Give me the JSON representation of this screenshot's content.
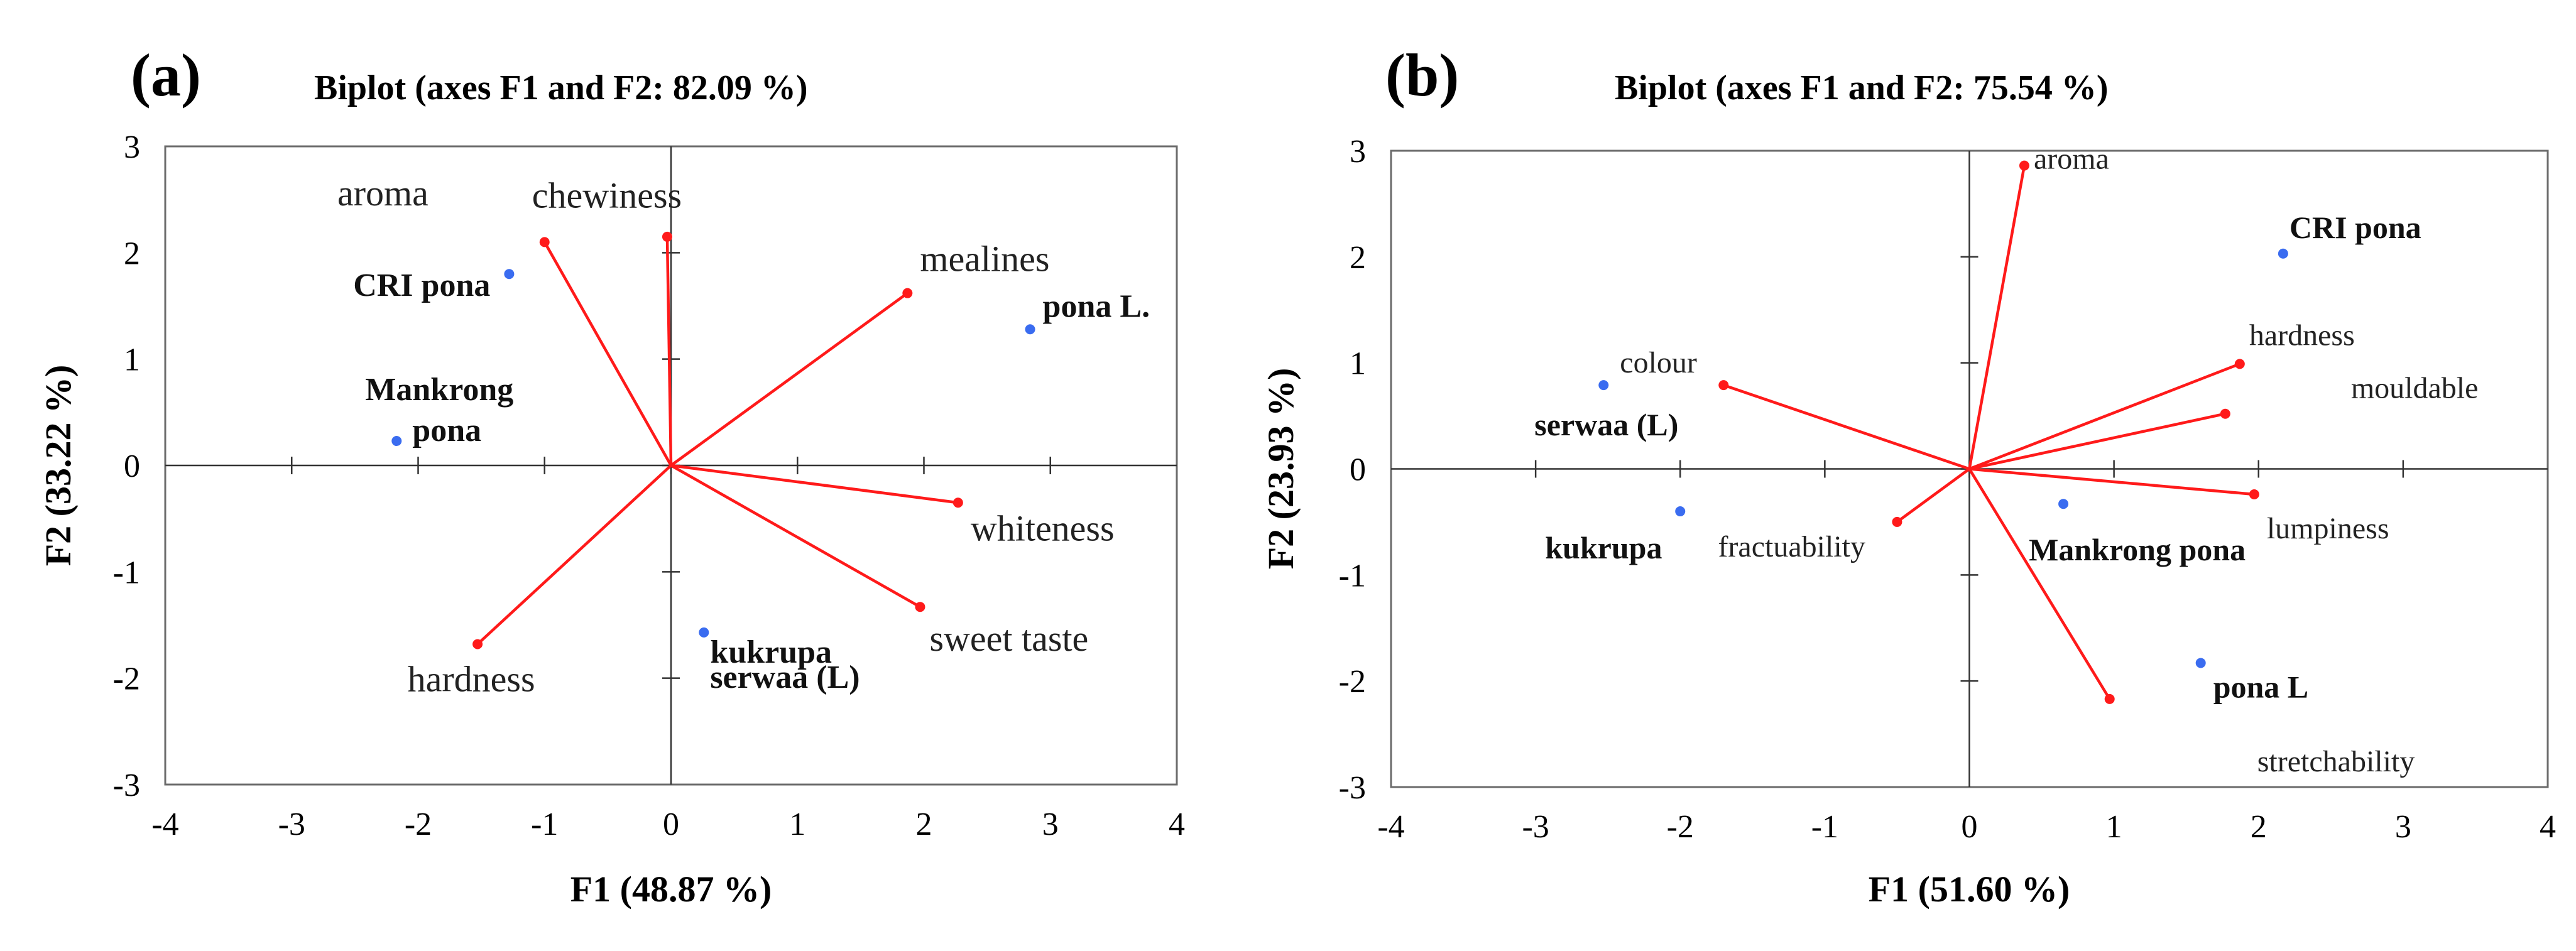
{
  "chart_data": [
    {
      "type": "scatter",
      "panel": "(a)",
      "title": "Biplot (axes F1 and F2: 82.09 %)",
      "xlabel": "F1 (48.87 %)",
      "ylabel": "F2 (33.22 %)",
      "xlim": [
        -4,
        4
      ],
      "ylim": [
        -3,
        3
      ],
      "xticks": [
        "-4",
        "-3",
        "-2",
        "-1",
        "0",
        "1",
        "2",
        "3",
        "4"
      ],
      "yticks": [
        "-3",
        "-2",
        "-1",
        "0",
        "1",
        "2",
        "3"
      ],
      "grid": false,
      "variables": [
        {
          "name": "aroma",
          "x": -0.03,
          "y": 2.15
        },
        {
          "name": "chewiness",
          "x": -1.0,
          "y": 2.1
        },
        {
          "name": "mealines",
          "x": 1.87,
          "y": 1.62
        },
        {
          "name": "whiteness",
          "x": 2.27,
          "y": -0.35
        },
        {
          "name": "sweet taste",
          "x": 1.97,
          "y": -1.33
        },
        {
          "name": "hardness",
          "x": -1.53,
          "y": -1.68
        }
      ],
      "observations": [
        {
          "name": "CRI pona",
          "x": -1.28,
          "y": 1.8
        },
        {
          "name": "pona L.",
          "x": 2.84,
          "y": 1.28
        },
        {
          "name": "Mankrong\npona",
          "x": -2.17,
          "y": 0.23
        },
        {
          "name": "kukrupa\nserwaa (L)",
          "x": 0.26,
          "y": -1.57
        }
      ]
    },
    {
      "type": "scatter",
      "panel": "(b)",
      "title": "Biplot (axes F1 and F2: 75.54 %)",
      "xlabel": "F1 (51.60 %)",
      "ylabel": "F2 (23.93 %)",
      "xlim": [
        -4,
        4
      ],
      "ylim": [
        -3,
        3
      ],
      "xticks": [
        "-4",
        "-3",
        "-2",
        "-1",
        "0",
        "1",
        "2",
        "3",
        "4"
      ],
      "yticks": [
        "-3",
        "-2",
        "-1",
        "0",
        "1",
        "2",
        "3"
      ],
      "grid": false,
      "variables": [
        {
          "name": "aroma",
          "x": 0.38,
          "y": 2.86
        },
        {
          "name": "hardness",
          "x": 1.87,
          "y": 0.99
        },
        {
          "name": "mouldable",
          "x": 1.77,
          "y": 0.52
        },
        {
          "name": "lumpiness",
          "x": 1.97,
          "y": -0.24
        },
        {
          "name": "colour",
          "x": -1.7,
          "y": 0.79
        },
        {
          "name": "fractuability",
          "x": -0.5,
          "y": -0.5
        },
        {
          "name": "stretchability",
          "x": 0.97,
          "y": -2.17
        }
      ],
      "observations": [
        {
          "name": "CRI pona",
          "x": 2.17,
          "y": 2.03
        },
        {
          "name": "serwaa (L)",
          "x": -2.53,
          "y": 0.79
        },
        {
          "name": "kukrupa",
          "x": -2.0,
          "y": -0.4
        },
        {
          "name": "Mankrong pona",
          "x": 0.65,
          "y": -0.33
        },
        {
          "name": "pona L",
          "x": 1.6,
          "y": -1.83
        }
      ]
    }
  ]
}
